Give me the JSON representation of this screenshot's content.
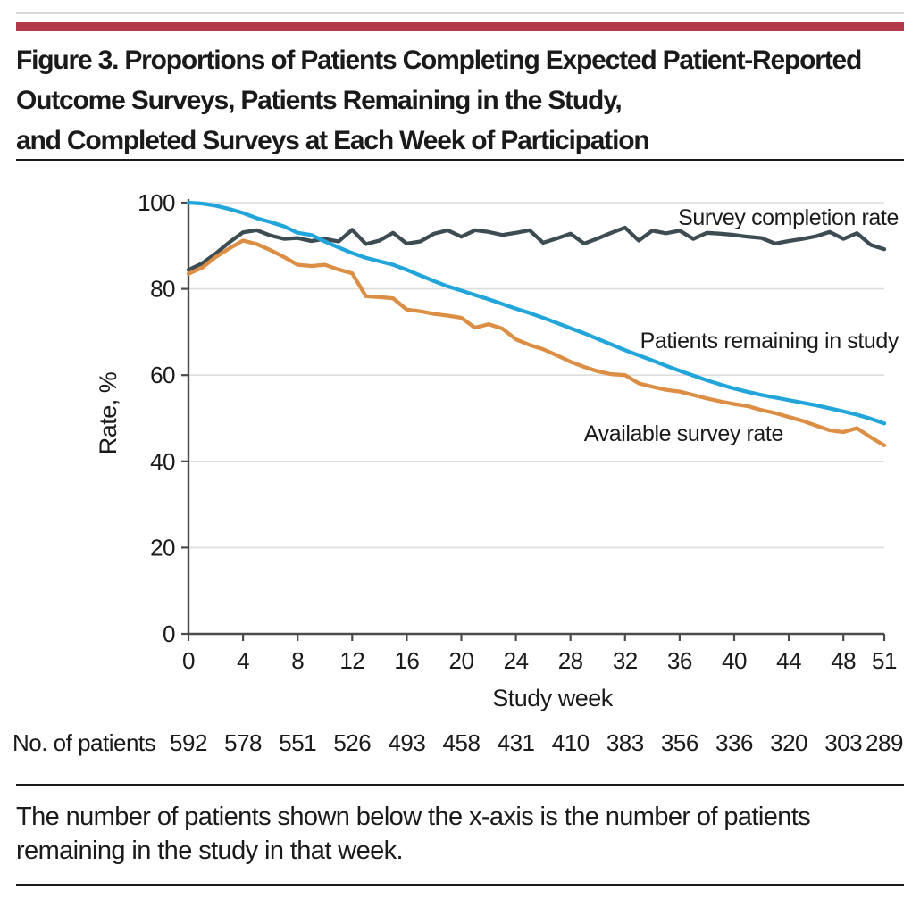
{
  "figure": {
    "title_lines": [
      "Figure 3. Proportions of Patients Completing Expected Patient-Reported",
      "Outcome Surveys, Patients Remaining in the Study,",
      "and Completed Surveys at Each Week of Participation"
    ],
    "caption_lines": [
      "The number of patients shown below the x-axis is the number of patients",
      "remaining in the study in that week."
    ]
  },
  "colors": {
    "accent_bar": "#b23a4b",
    "completion": "#3d4c53",
    "remaining": "#22a5db",
    "available": "#db8e44",
    "text": "#1a1a1a",
    "grid": "#dedede",
    "axis": "#4b4b4b"
  },
  "chart_data": {
    "type": "line",
    "xlabel": "Study week",
    "ylabel": "Rate, %",
    "xlim": [
      0,
      51
    ],
    "ylim": [
      0,
      100
    ],
    "x_ticks": [
      0,
      4,
      8,
      12,
      16,
      20,
      24,
      28,
      32,
      36,
      40,
      44,
      48,
      51
    ],
    "y_ticks": [
      0,
      20,
      40,
      60,
      80,
      100
    ],
    "grid": "horizontal-light",
    "legend_position": "inline-labels",
    "x_unit": "week, 0-51 step 1",
    "series": [
      {
        "name": "Survey completion rate",
        "color_key": "completion",
        "values": [
          84.4,
          85.9,
          88.2,
          90.8,
          93.1,
          93.6,
          92.4,
          91.6,
          91.8,
          91.1,
          91.6,
          91.0,
          93.7,
          90.4,
          91.2,
          93.0,
          90.5,
          91.0,
          92.8,
          93.6,
          92.1,
          93.6,
          93.2,
          92.5,
          93.0,
          93.6,
          90.7,
          91.7,
          92.8,
          90.5,
          91.7,
          93.0,
          94.2,
          91.2,
          93.5,
          92.9,
          93.5,
          91.6,
          93.0,
          92.8,
          92.5,
          92.1,
          91.8,
          90.5,
          91.1,
          91.6,
          92.2,
          93.2,
          91.6,
          92.9,
          90.2,
          89.2
        ]
      },
      {
        "name": "Patients remaining in study",
        "color_key": "remaining",
        "values": [
          100,
          99.8,
          99.3,
          98.5,
          97.6,
          96.4,
          95.5,
          94.5,
          93.0,
          92.5,
          91.0,
          89.6,
          88.3,
          87.2,
          86.4,
          85.6,
          84.4,
          83.1,
          81.8,
          80.6,
          79.6,
          78.6,
          77.6,
          76.5,
          75.4,
          74.4,
          73.3,
          72.1,
          70.9,
          69.7,
          68.4,
          67.1,
          65.8,
          64.6,
          63.4,
          62.2,
          61.0,
          59.9,
          58.8,
          57.8,
          56.9,
          56.1,
          55.4,
          54.8,
          54.2,
          53.6,
          53.0,
          52.3,
          51.6,
          50.8,
          49.9,
          48.8
        ]
      },
      {
        "name": "Available survey rate",
        "color_key": "available",
        "values": [
          83.5,
          84.9,
          87.4,
          89.4,
          91.2,
          90.4,
          89.0,
          87.4,
          85.6,
          85.3,
          85.6,
          84.5,
          83.6,
          78.3,
          78.1,
          77.8,
          75.2,
          74.8,
          74.2,
          73.8,
          73.3,
          71.0,
          71.8,
          70.8,
          68.3,
          67.0,
          66.0,
          64.6,
          63.1,
          61.9,
          60.9,
          60.2,
          60.0,
          58.1,
          57.3,
          56.6,
          56.2,
          55.4,
          54.6,
          53.9,
          53.3,
          52.8,
          51.9,
          51.2,
          50.3,
          49.4,
          48.3,
          47.2,
          46.8,
          47.7,
          45.6,
          43.7
        ]
      }
    ],
    "patients_row": {
      "label": "No. of patients",
      "weeks": [
        0,
        4,
        8,
        12,
        16,
        20,
        24,
        28,
        32,
        36,
        40,
        44,
        48,
        51
      ],
      "values": [
        592,
        578,
        551,
        526,
        493,
        458,
        431,
        410,
        383,
        356,
        336,
        320,
        303,
        289
      ]
    }
  }
}
